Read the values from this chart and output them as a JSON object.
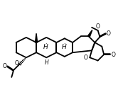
{
  "bg_color": "#ffffff",
  "line_color": "#000000",
  "line_width": 1.3,
  "text_color": "#000000",
  "font_size": 5.5,
  "fig_width": 1.66,
  "fig_height": 1.37,
  "dpi": 100,
  "xlim": [
    -0.5,
    11.0
  ],
  "ylim": [
    0.5,
    8.5
  ]
}
